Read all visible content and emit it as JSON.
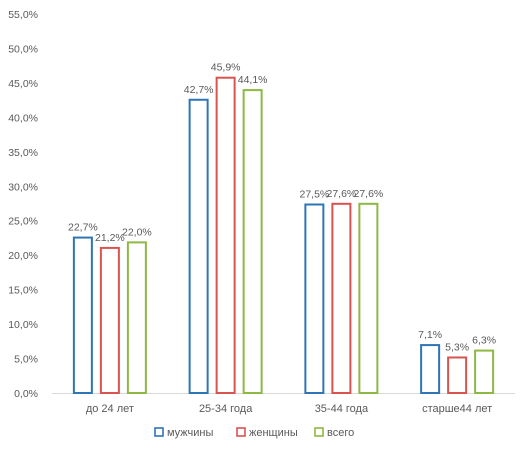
{
  "chart_data": {
    "type": "bar",
    "categories": [
      "до 24 лет",
      "25-34 года",
      "35-44 года",
      "старше44 лет"
    ],
    "series": [
      {
        "name": "мужчины",
        "color": "#2E75B6",
        "values": [
          22.7,
          42.7,
          27.5,
          7.1
        ],
        "labels": [
          "22,7%",
          "42,7%",
          "27,5%",
          "7,1%"
        ]
      },
      {
        "name": "женщины",
        "color": "#D9534F",
        "values": [
          21.2,
          45.9,
          27.6,
          5.3
        ],
        "labels": [
          "21,2%",
          "45,9%",
          "27,6%",
          "5,3%"
        ]
      },
      {
        "name": "всего",
        "color": "#8DB843",
        "values": [
          22.0,
          44.1,
          27.6,
          6.3
        ],
        "labels": [
          "22,0%",
          "44,1%",
          "27,6%",
          "6,3%"
        ]
      }
    ],
    "ylim": [
      0,
      55
    ],
    "ytick_values": [
      0,
      5,
      10,
      15,
      20,
      25,
      30,
      35,
      40,
      45,
      50,
      55
    ],
    "ytick_labels": [
      "0,0%",
      "5,0%",
      "10,0%",
      "15,0%",
      "20,0%",
      "25,0%",
      "30,0%",
      "35,0%",
      "40,0%",
      "45,0%",
      "50,0%",
      "55,0%"
    ],
    "grid": false,
    "legend_position": "bottom",
    "title": "",
    "xlabel": "",
    "ylabel": ""
  }
}
